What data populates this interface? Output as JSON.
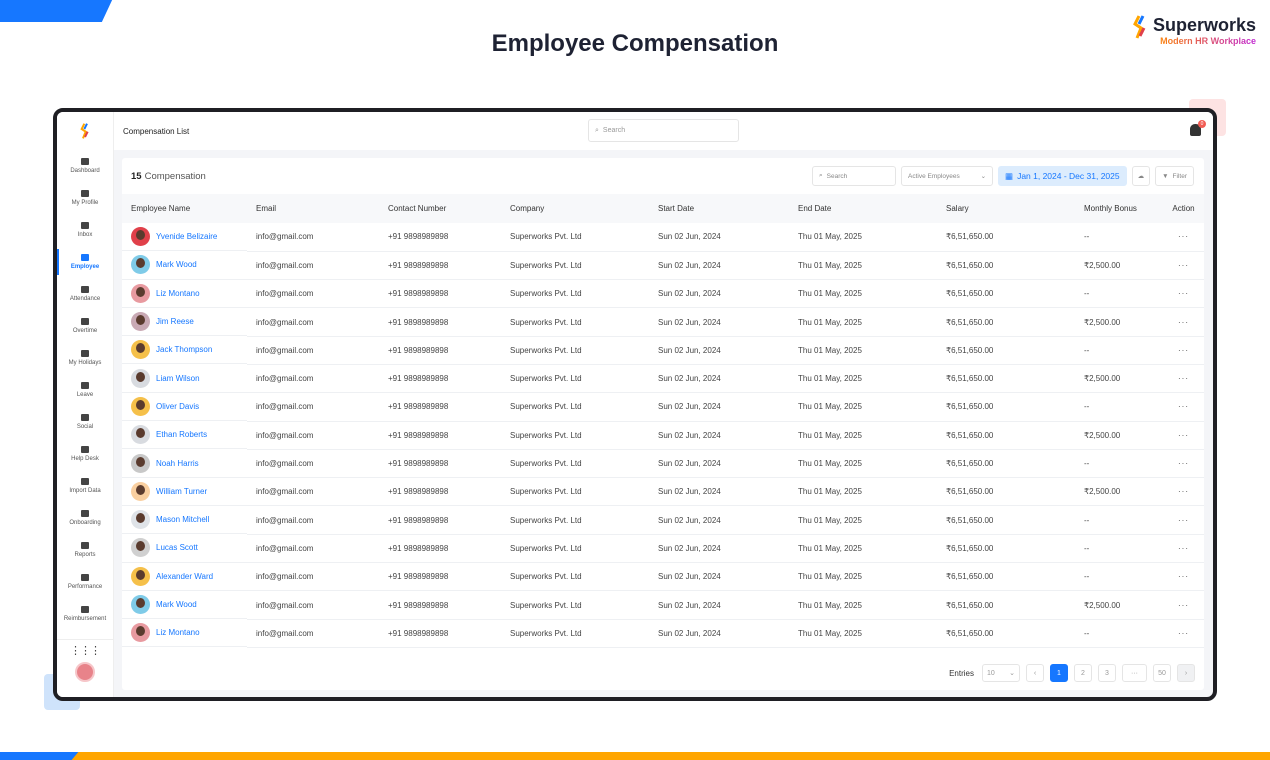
{
  "page_title": "Employee Compensation",
  "brand": {
    "name": "Superworks",
    "tagline": "Modern HR Workplace"
  },
  "colors": {
    "accent": "#1677ff",
    "orange": "#ffa500"
  },
  "sidebar": {
    "items": [
      {
        "label": "Dashboard",
        "icon": "dashboard-icon"
      },
      {
        "label": "My Profile",
        "icon": "user-icon"
      },
      {
        "label": "Inbox",
        "icon": "inbox-icon"
      },
      {
        "label": "Employee",
        "icon": "employee-icon",
        "active": true
      },
      {
        "label": "Attendance",
        "icon": "calendar-icon"
      },
      {
        "label": "Overtime",
        "icon": "clock-icon"
      },
      {
        "label": "My Holidays",
        "icon": "holiday-icon"
      },
      {
        "label": "Leave",
        "icon": "leave-icon"
      },
      {
        "label": "Social",
        "icon": "megaphone-icon"
      },
      {
        "label": "Help Desk",
        "icon": "ticket-icon"
      },
      {
        "label": "Import Data",
        "icon": "cloud-upload-icon"
      },
      {
        "label": "Onboarding",
        "icon": "onboarding-icon"
      },
      {
        "label": "Reports",
        "icon": "report-icon"
      },
      {
        "label": "Performance",
        "icon": "performance-icon"
      },
      {
        "label": "Reimbursement",
        "icon": "reimbursement-icon"
      }
    ]
  },
  "topbar": {
    "title": "Compensation List",
    "search_placeholder": "Search",
    "notification_count": "0"
  },
  "card": {
    "count": "15",
    "label": "Compensation",
    "search_placeholder": "Search",
    "status_filter": "Active Employees",
    "date_range": "Jan 1, 2024 - Dec 31, 2025",
    "filter_label": "Filter"
  },
  "table": {
    "columns": [
      "Employee Name",
      "Email",
      "Contact Number",
      "Company",
      "Start Date",
      "End Date",
      "Salary",
      "Monthly Bonus",
      "Action"
    ],
    "rows": [
      {
        "name": "Yvenide Belizaire",
        "email": "info@gmail.com",
        "phone": "+91 9898989898",
        "company": "Superworks Pvt. Ltd",
        "start": "Sun 02 Jun, 2024",
        "end": "Thu 01 May, 2025",
        "salary": "₹6,51,650.00",
        "bonus": "--",
        "avatar_bg": "#e0404a"
      },
      {
        "name": "Mark Wood",
        "email": "info@gmail.com",
        "phone": "+91 9898989898",
        "company": "Superworks Pvt. Ltd",
        "start": "Sun 02 Jun, 2024",
        "end": "Thu 01 May, 2025",
        "salary": "₹6,51,650.00",
        "bonus": "₹2,500.00",
        "avatar_bg": "#7fcbe8"
      },
      {
        "name": "Liz Montano",
        "email": "info@gmail.com",
        "phone": "+91 9898989898",
        "company": "Superworks Pvt. Ltd",
        "start": "Sun 02 Jun, 2024",
        "end": "Thu 01 May, 2025",
        "salary": "₹6,51,650.00",
        "bonus": "--",
        "avatar_bg": "#e89aa0"
      },
      {
        "name": "Jim Reese",
        "email": "info@gmail.com",
        "phone": "+91 9898989898",
        "company": "Superworks Pvt. Ltd",
        "start": "Sun 02 Jun, 2024",
        "end": "Thu 01 May, 2025",
        "salary": "₹6,51,650.00",
        "bonus": "₹2,500.00",
        "avatar_bg": "#c9a9b4"
      },
      {
        "name": "Jack Thompson",
        "email": "info@gmail.com",
        "phone": "+91 9898989898",
        "company": "Superworks Pvt. Ltd",
        "start": "Sun 02 Jun, 2024",
        "end": "Thu 01 May, 2025",
        "salary": "₹6,51,650.00",
        "bonus": "--",
        "avatar_bg": "#f5c04a"
      },
      {
        "name": "Liam Wilson",
        "email": "info@gmail.com",
        "phone": "+91 9898989898",
        "company": "Superworks Pvt. Ltd",
        "start": "Sun 02 Jun, 2024",
        "end": "Thu 01 May, 2025",
        "salary": "₹6,51,650.00",
        "bonus": "₹2,500.00",
        "avatar_bg": "#d8dbe0"
      },
      {
        "name": "Oliver Davis",
        "email": "info@gmail.com",
        "phone": "+91 9898989898",
        "company": "Superworks Pvt. Ltd",
        "start": "Sun 02 Jun, 2024",
        "end": "Thu 01 May, 2025",
        "salary": "₹6,51,650.00",
        "bonus": "--",
        "avatar_bg": "#f5c04a"
      },
      {
        "name": "Ethan Roberts",
        "email": "info@gmail.com",
        "phone": "+91 9898989898",
        "company": "Superworks Pvt. Ltd",
        "start": "Sun 02 Jun, 2024",
        "end": "Thu 01 May, 2025",
        "salary": "₹6,51,650.00",
        "bonus": "₹2,500.00",
        "avatar_bg": "#d8dbe0"
      },
      {
        "name": "Noah Harris",
        "email": "info@gmail.com",
        "phone": "+91 9898989898",
        "company": "Superworks Pvt. Ltd",
        "start": "Sun 02 Jun, 2024",
        "end": "Thu 01 May, 2025",
        "salary": "₹6,51,650.00",
        "bonus": "--",
        "avatar_bg": "#c8c8c8"
      },
      {
        "name": "William Turner",
        "email": "info@gmail.com",
        "phone": "+91 9898989898",
        "company": "Superworks Pvt. Ltd",
        "start": "Sun 02 Jun, 2024",
        "end": "Thu 01 May, 2025",
        "salary": "₹6,51,650.00",
        "bonus": "₹2,500.00",
        "avatar_bg": "#f9cfa0"
      },
      {
        "name": "Mason Mitchell",
        "email": "info@gmail.com",
        "phone": "+91 9898989898",
        "company": "Superworks Pvt. Ltd",
        "start": "Sun 02 Jun, 2024",
        "end": "Thu 01 May, 2025",
        "salary": "₹6,51,650.00",
        "bonus": "--",
        "avatar_bg": "#dfe3e8"
      },
      {
        "name": "Lucas Scott",
        "email": "info@gmail.com",
        "phone": "+91 9898989898",
        "company": "Superworks Pvt. Ltd",
        "start": "Sun 02 Jun, 2024",
        "end": "Thu 01 May, 2025",
        "salary": "₹6,51,650.00",
        "bonus": "--",
        "avatar_bg": "#d0d0d0"
      },
      {
        "name": "Alexander Ward",
        "email": "info@gmail.com",
        "phone": "+91 9898989898",
        "company": "Superworks Pvt. Ltd",
        "start": "Sun 02 Jun, 2024",
        "end": "Thu 01 May, 2025",
        "salary": "₹6,51,650.00",
        "bonus": "--",
        "avatar_bg": "#f5c04a"
      },
      {
        "name": "Mark Wood",
        "email": "info@gmail.com",
        "phone": "+91 9898989898",
        "company": "Superworks Pvt. Ltd",
        "start": "Sun 02 Jun, 2024",
        "end": "Thu 01 May, 2025",
        "salary": "₹6,51,650.00",
        "bonus": "₹2,500.00",
        "avatar_bg": "#7fcbe8"
      },
      {
        "name": "Liz Montano",
        "email": "info@gmail.com",
        "phone": "+91 9898989898",
        "company": "Superworks Pvt. Ltd",
        "start": "Sun 02 Jun, 2024",
        "end": "Thu 01 May, 2025",
        "salary": "₹6,51,650.00",
        "bonus": "--",
        "avatar_bg": "#e89aa0"
      }
    ]
  },
  "pagination": {
    "entries_label": "Entries",
    "page_size": "10",
    "pages": [
      "1",
      "2",
      "3",
      "···",
      "50"
    ],
    "current": "1"
  }
}
